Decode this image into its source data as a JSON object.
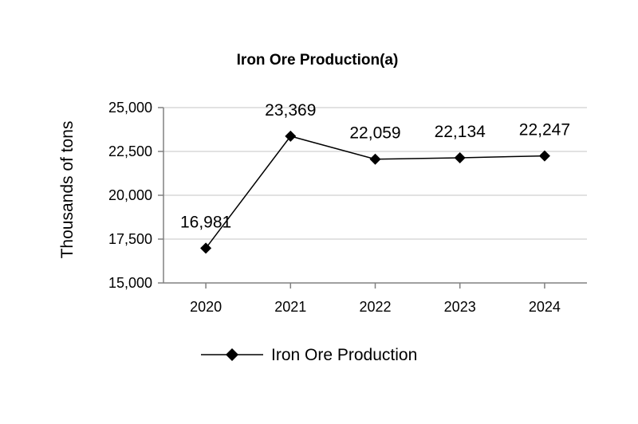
{
  "chart_data": {
    "type": "line",
    "title": "Iron Ore Production(a)",
    "xlabel": "",
    "ylabel": "Thousands of tons",
    "categories": [
      "2020",
      "2021",
      "2022",
      "2023",
      "2024"
    ],
    "series": [
      {
        "name": "Iron Ore Production",
        "values": [
          16981,
          23369,
          22059,
          22134,
          22247
        ],
        "data_labels": [
          "16,981",
          "23,369",
          "22,059",
          "22,134",
          "22,247"
        ],
        "color": "#000000",
        "marker": "diamond"
      }
    ],
    "ylim": [
      15000,
      25000
    ],
    "yticks": [
      15000,
      17500,
      20000,
      22500,
      25000
    ],
    "ytick_labels": [
      "15,000",
      "17,500",
      "20,000",
      "22,500",
      "25,000"
    ],
    "grid": true,
    "gridline_color": "#d9d9d9",
    "axis_color": "#808080",
    "legend_position": "bottom"
  }
}
